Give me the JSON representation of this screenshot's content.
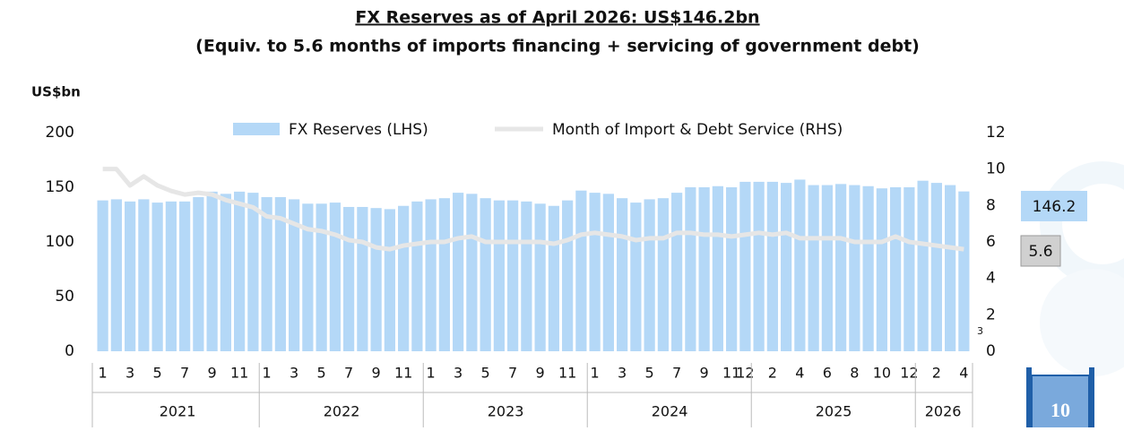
{
  "chart_data": {
    "type": "bar-line",
    "title": "FX Reserves as of April 2026: US$146.2bn",
    "subtitle": "(Equiv. to 5.6 months of imports financing + servicing of government debt)",
    "y_axis_label": "US$bn",
    "footnote_marker": "3",
    "page_number": "10",
    "categories": [
      "1",
      null,
      "3",
      null,
      "5",
      null,
      "7",
      null,
      "9",
      null,
      "11",
      null,
      "1",
      null,
      "3",
      null,
      "5",
      null,
      "7",
      null,
      "9",
      null,
      "11",
      null,
      "1",
      null,
      "3",
      null,
      "5",
      null,
      "7",
      null,
      "9",
      null,
      "11",
      null,
      "1",
      null,
      "3",
      null,
      "5",
      null,
      "7",
      null,
      "9",
      null,
      "11",
      "12",
      null,
      "2",
      null,
      "4",
      null,
      "6",
      null,
      "8",
      null,
      "10",
      null,
      "12",
      null,
      "2",
      null,
      "4"
    ],
    "year_groups": [
      {
        "label": "2021",
        "months": 12
      },
      {
        "label": "2022",
        "months": 12
      },
      {
        "label": "2023",
        "months": 12
      },
      {
        "label": "2024",
        "months": 12
      },
      {
        "label": "2025",
        "months": 12
      },
      {
        "label": "2026",
        "months": 4
      }
    ],
    "series": [
      {
        "name": "FX Reserves (LHS)",
        "color": "#b4d8f7",
        "kind": "bar",
        "values": [
          138,
          139,
          137,
          139,
          136,
          137,
          137,
          141,
          146,
          144,
          146,
          145,
          141,
          141,
          139,
          135,
          135,
          136,
          132,
          132,
          131,
          130,
          133,
          137,
          139,
          140,
          145,
          144,
          140,
          138,
          138,
          137,
          135,
          133,
          138,
          147,
          145,
          144,
          140,
          136,
          139,
          140,
          145,
          150,
          150,
          151,
          150,
          155,
          155,
          155,
          154,
          157,
          152,
          152,
          153,
          152,
          151,
          149,
          150,
          150,
          156,
          154,
          152,
          146.2
        ]
      },
      {
        "name": "Month of Import & Debt Service (RHS)",
        "color": "#e6e6e6",
        "kind": "line",
        "axis": "y2",
        "values": [
          10.0,
          10.0,
          9.1,
          9.6,
          9.1,
          8.8,
          8.6,
          8.7,
          8.6,
          8.3,
          8.1,
          7.9,
          7.4,
          7.3,
          7.0,
          6.7,
          6.6,
          6.4,
          6.1,
          6.0,
          5.7,
          5.6,
          5.8,
          5.9,
          6.0,
          6.0,
          6.2,
          6.3,
          6.0,
          6.0,
          6.0,
          6.0,
          6.0,
          5.9,
          6.1,
          6.4,
          6.5,
          6.4,
          6.3,
          6.1,
          6.2,
          6.2,
          6.5,
          6.5,
          6.4,
          6.4,
          6.3,
          6.4,
          6.5,
          6.4,
          6.5,
          6.2,
          6.2,
          6.2,
          6.2,
          6.0,
          6.0,
          6.0,
          6.3,
          6.0,
          5.9,
          5.8,
          5.7,
          5.6
        ]
      }
    ],
    "ylim": [
      0,
      200
    ],
    "yticks": [
      0,
      50,
      100,
      150,
      200
    ],
    "y2lim": [
      0,
      12
    ],
    "y2ticks": [
      0,
      2,
      4,
      6,
      8,
      10,
      12
    ],
    "grid": false,
    "legend": "top"
  }
}
